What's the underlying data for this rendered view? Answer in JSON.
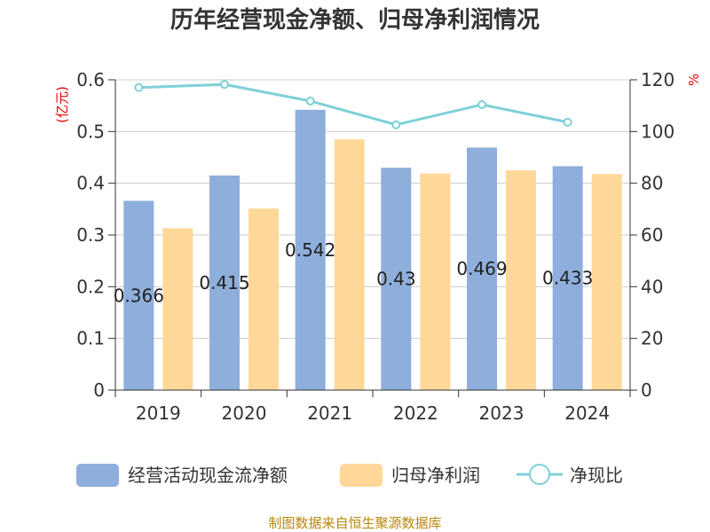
{
  "chart_data": {
    "type": "bar",
    "title": "历年经营现金净额、归母净利润情况",
    "left_unit": "(亿元)",
    "right_unit": "%",
    "categories": [
      "2019",
      "2020",
      "2021",
      "2022",
      "2023",
      "2024"
    ],
    "left_ylim": [
      0,
      0.6
    ],
    "left_ticks": [
      "0",
      "0.1",
      "0.2",
      "0.3",
      "0.4",
      "0.5",
      "0.6"
    ],
    "right_ylim": [
      0,
      120
    ],
    "right_ticks": [
      "0",
      "20",
      "40",
      "60",
      "80",
      "100",
      "120"
    ],
    "series": [
      {
        "name": "经营活动现金流净额",
        "type": "bar",
        "axis": "left",
        "color": "#8eaedb",
        "values": [
          0.366,
          0.415,
          0.542,
          0.43,
          0.469,
          0.433
        ],
        "labels": [
          "0.366",
          "0.415",
          "0.542",
          "0.43",
          "0.469",
          "0.433"
        ]
      },
      {
        "name": "归母净利润",
        "type": "bar",
        "axis": "left",
        "color": "#ffd899",
        "values": [
          0.313,
          0.351,
          0.485,
          0.419,
          0.425,
          0.418
        ]
      },
      {
        "name": "净现比",
        "type": "line",
        "axis": "right",
        "color": "#7fd0d8",
        "values": [
          117.0,
          118.2,
          111.8,
          102.6,
          110.4,
          103.6
        ]
      }
    ],
    "grid": true,
    "legend_position": "bottom"
  },
  "footer": "制图数据来自恒生聚源数据库"
}
